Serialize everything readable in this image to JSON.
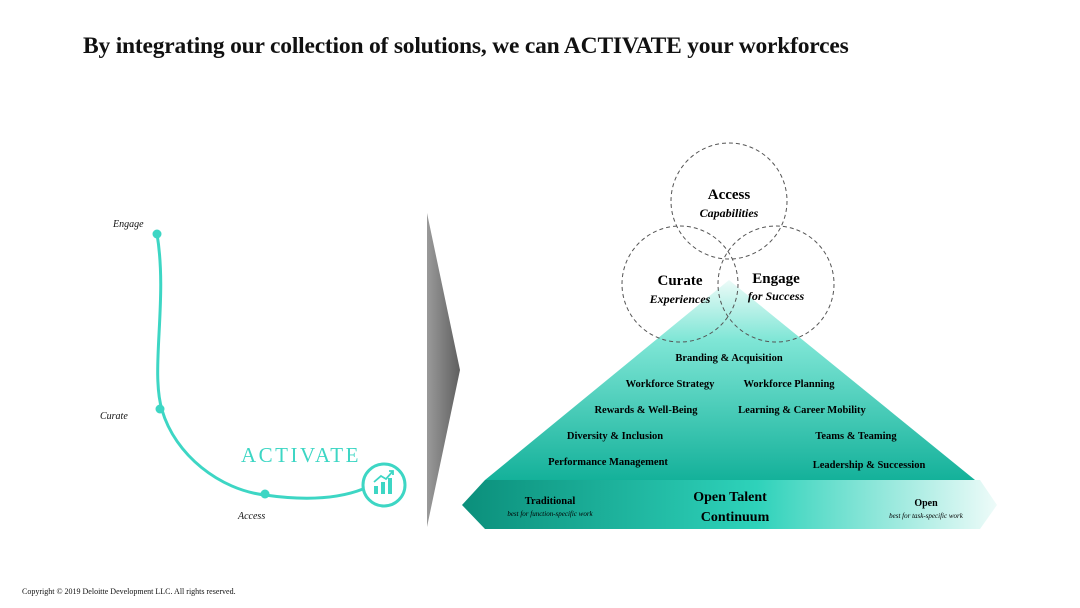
{
  "title": "By integrating our collection of solutions, we can ACTIVATE your workforces",
  "footer": "Copyright © 2019 Deloitte Development LLC. All rights reserved.",
  "curve": {
    "labels": [
      "Engage",
      "Curate",
      "Access"
    ],
    "activate": "ACTIVATE",
    "icon": "trending-up-chart-icon",
    "color": "#3dd6c4"
  },
  "venn": {
    "top": {
      "line1": "Access",
      "line2": "Capabilities"
    },
    "left": {
      "line1": "Curate",
      "line2": "Experiences"
    },
    "right": {
      "line1": "Engage",
      "line2": "for Success"
    }
  },
  "pyramid": {
    "top": "Branding & Acquisition",
    "row2": [
      "Workforce Strategy",
      "Workforce Planning"
    ],
    "row3": [
      "Rewards & Well-Being",
      "Learning & Career Mobility"
    ],
    "row4": [
      "Diversity & Inclusion",
      "Teams & Teaming"
    ],
    "row5": [
      "Performance Management",
      "Leadership & Succession"
    ]
  },
  "continuum": {
    "center_line1": "Open Talent",
    "center_line2": "Continuum",
    "left_title": "Traditional",
    "left_sub": "best for function-specific work",
    "right_title": "Open",
    "right_sub": "best for task-specific work"
  },
  "colors": {
    "teal_dark": "#0c9a84",
    "teal_mid": "#2fd3bb",
    "teal_light": "#e6faf6",
    "accent": "#3dd6c4"
  }
}
